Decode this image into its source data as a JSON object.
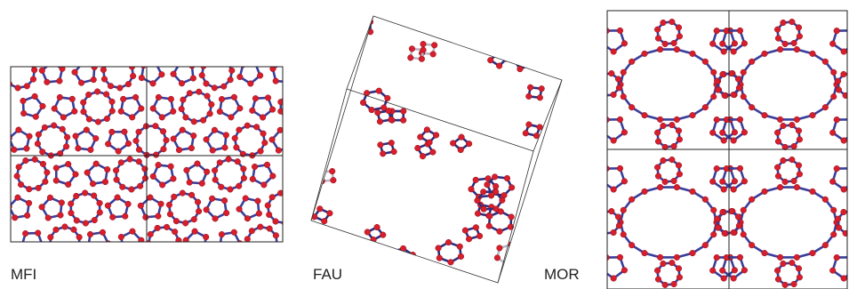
{
  "panels": [
    {
      "label": "MFI"
    },
    {
      "label": "FAU"
    },
    {
      "label": "MOR"
    }
  ]
}
